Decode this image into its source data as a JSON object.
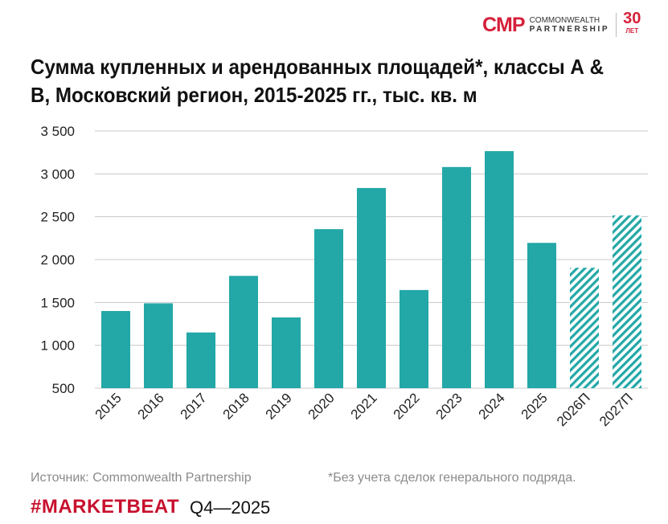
{
  "logo": {
    "mark": "CMP",
    "line1": "COMMONWEALTH",
    "line2": "PARTNERSHIP",
    "years": "30",
    "years_label": "ЛЕТ"
  },
  "title": "Сумма купленных и арендованных площадей*, классы А & B, Московский регион, 2015-2025 гг., тыс. кв. м",
  "footer": {
    "source": "Источник: Commonwealth Partnership",
    "note": "*Без учета сделок генерального подряда.",
    "brand": "#MARKETBEAT",
    "period": "Q4—2025"
  },
  "colors": {
    "bar": "#23a7a7",
    "brand": "#c8102e"
  },
  "chart_data": {
    "type": "bar",
    "title": "Сумма купленных и арендованных площадей*, классы А & B, Московский регион, 2015-2025 гг., тыс. кв. м",
    "categories": [
      "2015",
      "2016",
      "2017",
      "2018",
      "2019",
      "2020",
      "2021",
      "2022",
      "2023",
      "2024",
      "2025",
      "2026П",
      "2027П"
    ],
    "values": [
      1400,
      1490,
      1150,
      1810,
      1325,
      2355,
      2835,
      1645,
      3080,
      3265,
      2195,
      1905,
      2515
    ],
    "forecast": [
      false,
      false,
      false,
      false,
      false,
      false,
      false,
      false,
      false,
      false,
      false,
      true,
      true
    ],
    "ylim": [
      500,
      3500
    ],
    "yticks": [
      500,
      1000,
      1500,
      2000,
      2500,
      3000,
      3500
    ],
    "ytick_labels": [
      "500",
      "1 000",
      "1 500",
      "2 000",
      "2 500",
      "3 000",
      "3 500"
    ],
    "grid": true,
    "forecast_style": "hatched"
  }
}
